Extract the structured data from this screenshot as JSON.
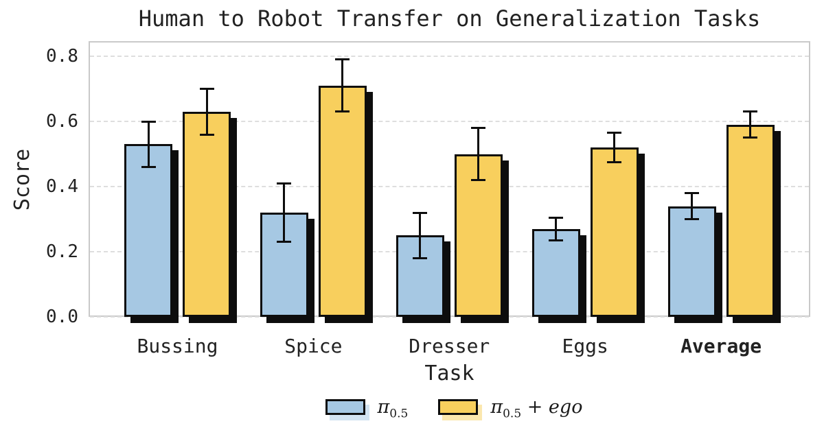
{
  "chart_data": {
    "type": "bar",
    "title": "Human to Robot Transfer on Generalization Tasks",
    "xlabel": "Task",
    "ylabel": "Score",
    "categories": [
      "Bussing",
      "Spice",
      "Dresser",
      "Eggs",
      "Average"
    ],
    "bold_categories": [
      "Average"
    ],
    "yticks": [
      0.0,
      0.2,
      0.4,
      0.6,
      0.8
    ],
    "ytick_labels": [
      "0.0",
      "0.2",
      "0.4",
      "0.6",
      "0.8"
    ],
    "ylim": [
      0,
      0.845
    ],
    "grid": "horizontal-dashed",
    "legend_position": "lower-center-outside",
    "series": [
      {
        "name": "pi_0.5",
        "legend": {
          "base": "π",
          "sub": "0.5",
          "rest": ""
        },
        "color": "#a6c8e3",
        "values": [
          0.53,
          0.32,
          0.25,
          0.27,
          0.34
        ],
        "errors": [
          0.07,
          0.09,
          0.07,
          0.035,
          0.04
        ]
      },
      {
        "name": "pi_0.5+ego",
        "legend": {
          "base": "π",
          "sub": "0.5",
          "rest": "+ ego"
        },
        "color": "#f8cf5d",
        "values": [
          0.63,
          0.71,
          0.5,
          0.52,
          0.59
        ],
        "errors": [
          0.07,
          0.08,
          0.08,
          0.045,
          0.04
        ]
      }
    ],
    "style": {
      "bar_edge_color": "#0d0d0d",
      "shadow_color": "#0d0d0d",
      "grid_color": "#dedede",
      "spine_color": "#c9c9c9",
      "text_color": "#222222"
    }
  }
}
